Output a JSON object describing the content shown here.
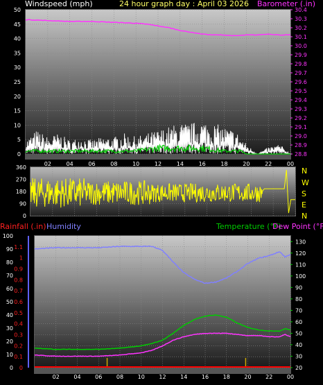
{
  "header": {
    "windspeed_label": "Windspeed (mph)",
    "title": "24 hour graph day : April 03 2026",
    "barometer_label": "Barometer (.in)"
  },
  "lower_header": {
    "rainfall_label": "Rainfall (.in)",
    "humidity_label": "Humidity",
    "temperature_label": "Temperature (°F)",
    "dewpoint_label": "Dew Point (°F)"
  },
  "direction_labels": [
    "N",
    "W",
    "S",
    "E",
    "N"
  ],
  "colors": {
    "wind": "#ffffff",
    "wind_avg": "#00cc00",
    "barometer": "#ff33ff",
    "direction": "#ffff00",
    "humidity": "#8080ff",
    "temperature": "#00cc00",
    "dewpoint": "#ff33ff",
    "rainfall": "#ff0000",
    "rain_accum": "#ccaa00"
  },
  "chart_data": [
    {
      "type": "line",
      "name": "wind-barometer",
      "title": "24 hour graph day : April 03 2026",
      "x_ticks": [
        "02",
        "04",
        "06",
        "08",
        "10",
        "12",
        "14",
        "16",
        "18",
        "20",
        "22",
        "00"
      ],
      "ylabel": "Windspeed (mph)",
      "ylim": [
        0,
        50
      ],
      "y_ticks": [
        0,
        5,
        10,
        15,
        20,
        25,
        30,
        35,
        40,
        45,
        50
      ],
      "ylabel_right": "Barometer (.in)",
      "ylim_right": [
        28.8,
        30.4
      ],
      "y_ticks_right": [
        28.8,
        28.9,
        29.0,
        29.1,
        29.2,
        29.3,
        29.4,
        29.5,
        29.6,
        29.7,
        29.8,
        29.9,
        30.0,
        30.1,
        30.2,
        30.3,
        30.4
      ],
      "barometer": {
        "hours": [
          0,
          2,
          4,
          6,
          8,
          10,
          11,
          12,
          13,
          14,
          15,
          16,
          17,
          18,
          19,
          20,
          21,
          22,
          23,
          24
        ],
        "values": [
          30.29,
          30.28,
          30.27,
          30.27,
          30.26,
          30.25,
          30.24,
          30.22,
          30.2,
          30.17,
          30.15,
          30.13,
          30.12,
          30.12,
          30.11,
          30.12,
          30.12,
          30.13,
          30.12,
          30.12
        ]
      },
      "wind_gust": {
        "hours": [
          0,
          1,
          2,
          3,
          4,
          5,
          6,
          7,
          8,
          9,
          10,
          11,
          12,
          13,
          14,
          15,
          16,
          17,
          18,
          19,
          20,
          21,
          22,
          23,
          24
        ],
        "values": [
          4,
          7,
          5,
          6,
          4,
          5,
          4,
          5,
          5,
          6,
          5,
          6,
          7,
          8,
          9,
          9,
          10,
          9,
          8,
          7,
          3,
          0,
          2,
          3,
          0
        ]
      },
      "wind_avg": {
        "hours": [
          0,
          2,
          4,
          6,
          8,
          10,
          12,
          14,
          16,
          18,
          19.5,
          20,
          24
        ],
        "values": [
          1,
          1,
          1,
          1,
          1,
          1,
          2,
          2,
          2,
          1,
          1,
          0,
          0
        ]
      }
    },
    {
      "type": "line",
      "name": "wind-direction",
      "ylim": [
        0,
        360
      ],
      "y_ticks": [
        0,
        90,
        180,
        270,
        360
      ]
    },
    {
      "type": "line",
      "name": "temp-humidity-rain",
      "x_ticks": [
        "02",
        "04",
        "06",
        "08",
        "10",
        "12",
        "14",
        "16",
        "18",
        "20",
        "22",
        "00"
      ],
      "ylabel_left_outer": "Rainfall (.in)",
      "ylim_rain": [
        0,
        1.2
      ],
      "y_ticks_rain": [
        0,
        0.1,
        0.2,
        0.3,
        0.4,
        0.5,
        0.6,
        0.7,
        0.8,
        0.9,
        1.0,
        1.1
      ],
      "ylabel_left_inner": "Humidity",
      "ylim_humidity": [
        0,
        100
      ],
      "y_ticks_humidity": [
        0,
        10,
        20,
        30,
        40,
        50,
        60,
        70,
        80,
        90,
        100
      ],
      "ylabel_right": "Temperature (°F)",
      "ylim_right": [
        20,
        135
      ],
      "y_ticks_right": [
        20,
        30,
        40,
        50,
        60,
        70,
        80,
        90,
        100,
        110,
        120,
        130
      ],
      "humidity": {
        "hours": [
          0,
          2,
          4,
          6,
          8,
          10,
          11,
          12,
          13,
          14,
          15,
          16,
          17,
          18,
          19,
          20,
          21,
          22,
          23,
          23.5,
          24
        ],
        "values": [
          90,
          91,
          91,
          91,
          92,
          92,
          92,
          89,
          80,
          72,
          67,
          64,
          65,
          68,
          73,
          79,
          83,
          85,
          88,
          84,
          86
        ]
      },
      "temperature": {
        "hours": [
          0,
          2,
          4,
          6,
          8,
          10,
          11,
          12,
          13,
          14,
          15,
          16,
          17,
          18,
          19,
          20,
          21,
          22,
          23,
          23.5,
          24
        ],
        "values": [
          37,
          36,
          36,
          36,
          37,
          39,
          41,
          44,
          50,
          57,
          62,
          65,
          66,
          64,
          59,
          55,
          53,
          52,
          52,
          54,
          53
        ]
      },
      "dewpoint": {
        "hours": [
          0,
          2,
          4,
          6,
          8,
          10,
          11,
          12,
          13,
          14,
          15,
          16,
          17,
          18,
          19,
          20,
          21,
          22,
          23,
          23.5,
          24
        ],
        "values": [
          31,
          30,
          30,
          30,
          31,
          33,
          35,
          39,
          44,
          47,
          49,
          50,
          50,
          50,
          49,
          48,
          48,
          47,
          47,
          49,
          47
        ]
      },
      "rainfall": {
        "hours": [
          0,
          24
        ],
        "values": [
          0,
          0
        ]
      },
      "rain_marks_hours": [
        6.8,
        19.8
      ]
    }
  ]
}
